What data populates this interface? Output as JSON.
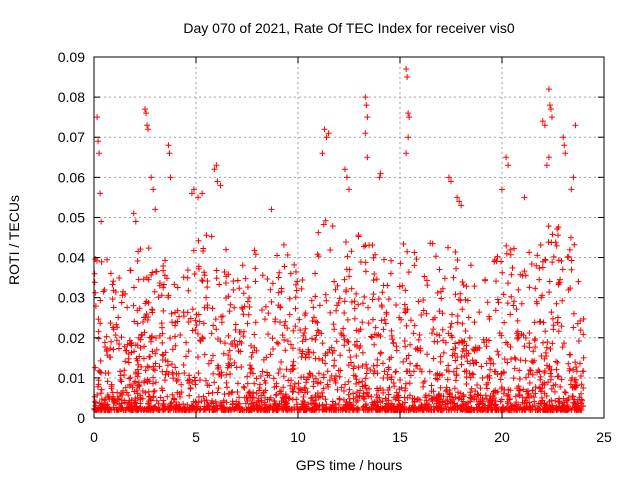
{
  "chart_data": {
    "type": "scatter",
    "title": "Day 070 of 2021, Rate Of TEC Index for receiver vis0",
    "xlabel": "GPS time / hours",
    "ylabel": "ROTI / TECUs",
    "xlim": [
      0,
      25
    ],
    "ylim": [
      0,
      0.09
    ],
    "x_ticks": [
      "0",
      "5",
      "10",
      "15",
      "20",
      "25"
    ],
    "y_ticks": [
      "0",
      "0.01",
      "0.02",
      "0.03",
      "0.04",
      "0.05",
      "0.06",
      "0.07",
      "0.08",
      "0.09"
    ],
    "grid": true,
    "marker": "+",
    "colors": {
      "series": "#ff0000",
      "grid": "#a0a0a0",
      "axis": "#000000"
    },
    "series": [
      {
        "points": [
          [
            0.15,
            0.075
          ],
          [
            0.2,
            0.069
          ],
          [
            0.25,
            0.066
          ],
          [
            0.3,
            0.056
          ],
          [
            0.35,
            0.049
          ],
          [
            1.95,
            0.051
          ],
          [
            2.05,
            0.049
          ],
          [
            2.5,
            0.077
          ],
          [
            2.55,
            0.076
          ],
          [
            2.6,
            0.073
          ],
          [
            2.65,
            0.072
          ],
          [
            2.8,
            0.06
          ],
          [
            2.9,
            0.057
          ],
          [
            3.0,
            0.052
          ],
          [
            3.65,
            0.068
          ],
          [
            3.7,
            0.066
          ],
          [
            3.75,
            0.06
          ],
          [
            4.8,
            0.056
          ],
          [
            4.9,
            0.057
          ],
          [
            5.1,
            0.055
          ],
          [
            5.3,
            0.056
          ],
          [
            5.9,
            0.062
          ],
          [
            6.0,
            0.063
          ],
          [
            6.05,
            0.059
          ],
          [
            6.2,
            0.058
          ],
          [
            8.7,
            0.052
          ],
          [
            11.3,
            0.072
          ],
          [
            11.4,
            0.07
          ],
          [
            11.5,
            0.071
          ],
          [
            11.2,
            0.066
          ],
          [
            12.3,
            0.062
          ],
          [
            12.4,
            0.06
          ],
          [
            12.5,
            0.057
          ],
          [
            13.3,
            0.08
          ],
          [
            13.35,
            0.078
          ],
          [
            13.4,
            0.075
          ],
          [
            13.3,
            0.071
          ],
          [
            13.4,
            0.065
          ],
          [
            14.0,
            0.06
          ],
          [
            14.05,
            0.061
          ],
          [
            15.3,
            0.087
          ],
          [
            15.35,
            0.085
          ],
          [
            15.4,
            0.076
          ],
          [
            15.45,
            0.075
          ],
          [
            15.4,
            0.07
          ],
          [
            15.3,
            0.066
          ],
          [
            17.4,
            0.06
          ],
          [
            17.5,
            0.059
          ],
          [
            17.8,
            0.055
          ],
          [
            17.9,
            0.054
          ],
          [
            18.0,
            0.053
          ],
          [
            20.2,
            0.065
          ],
          [
            20.3,
            0.063
          ],
          [
            20.0,
            0.057
          ],
          [
            21.1,
            0.055
          ],
          [
            22.0,
            0.074
          ],
          [
            22.1,
            0.073
          ],
          [
            22.3,
            0.082
          ],
          [
            22.35,
            0.078
          ],
          [
            22.4,
            0.077
          ],
          [
            22.45,
            0.075
          ],
          [
            22.3,
            0.065
          ],
          [
            22.2,
            0.063
          ],
          [
            23.0,
            0.07
          ],
          [
            23.05,
            0.068
          ],
          [
            23.1,
            0.066
          ],
          [
            23.6,
            0.073
          ],
          [
            23.5,
            0.06
          ],
          [
            23.4,
            0.057
          ]
        ],
        "dense_profile": {
          "x": [
            0,
            0.5,
            1.0,
            1.5,
            2.0,
            2.5,
            3.0,
            3.5,
            4.0,
            4.5,
            5.0,
            5.5,
            6.0,
            6.5,
            7.0,
            7.5,
            8.0,
            8.5,
            9.0,
            9.5,
            10.0,
            10.5,
            11.0,
            11.5,
            12.0,
            12.5,
            13.0,
            13.5,
            14.0,
            14.5,
            15.0,
            15.5,
            16.0,
            16.5,
            17.0,
            17.5,
            18.0,
            18.5,
            19.0,
            19.5,
            20.0,
            20.5,
            21.0,
            21.5,
            22.0,
            22.5,
            23.0,
            23.5,
            24.0
          ],
          "y_max": [
            0.04,
            0.045,
            0.037,
            0.033,
            0.042,
            0.046,
            0.048,
            0.04,
            0.034,
            0.036,
            0.045,
            0.05,
            0.046,
            0.044,
            0.038,
            0.042,
            0.043,
            0.04,
            0.041,
            0.045,
            0.036,
            0.036,
            0.048,
            0.05,
            0.046,
            0.044,
            0.047,
            0.045,
            0.04,
            0.042,
            0.045,
            0.044,
            0.038,
            0.044,
            0.043,
            0.046,
            0.043,
            0.039,
            0.038,
            0.037,
            0.046,
            0.045,
            0.044,
            0.04,
            0.05,
            0.052,
            0.05,
            0.045,
            0.03
          ]
        }
      }
    ]
  }
}
